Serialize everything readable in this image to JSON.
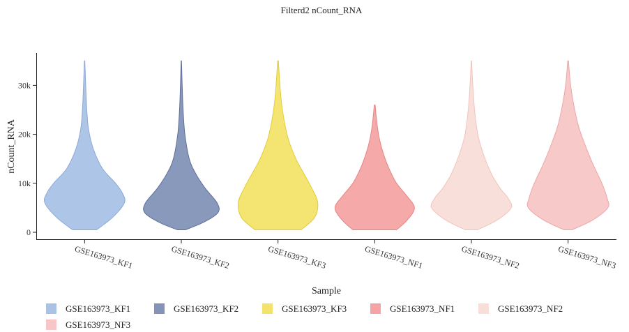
{
  "chart_data": {
    "type": "violin",
    "title": "Filterd2 nCount_RNA",
    "xlabel": "Sample",
    "ylabel": "nCount_RNA",
    "ylim": [
      -1500,
      37000
    ],
    "yticks": [
      0,
      10000,
      20000,
      30000
    ],
    "ytick_labels": [
      "0",
      "10k",
      "20k",
      "30k"
    ],
    "grid": false,
    "legend_position": "bottom",
    "categories": [
      "GSE163973_KF1",
      "GSE163973_KF2",
      "GSE163973_KF3",
      "GSE163973_NF1",
      "GSE163973_NF2",
      "GSE163973_NF3"
    ],
    "colors": [
      "#a9c2e6",
      "#8394b8",
      "#f3e36a",
      "#f4a4a4",
      "#f9ddd8",
      "#f8c6c6"
    ],
    "outline_colors": [
      "#8fa9d6",
      "#5e6f9a",
      "#e2cc3a",
      "#e58585",
      "#f0c4bd",
      "#eba7a7"
    ],
    "series": [
      {
        "name": "GSE163973_KF1",
        "profile": [
          [
            500,
            0.3
          ],
          [
            3000,
            0.7
          ],
          [
            6000,
            1.0
          ],
          [
            8000,
            0.95
          ],
          [
            10000,
            0.78
          ],
          [
            13000,
            0.45
          ],
          [
            17000,
            0.22
          ],
          [
            21000,
            0.1
          ],
          [
            25000,
            0.055
          ],
          [
            30000,
            0.028
          ],
          [
            35000,
            0.005
          ]
        ]
      },
      {
        "name": "GSE163973_KF2",
        "profile": [
          [
            500,
            0.1
          ],
          [
            2000,
            0.55
          ],
          [
            4000,
            0.92
          ],
          [
            6000,
            0.9
          ],
          [
            9000,
            0.6
          ],
          [
            12000,
            0.36
          ],
          [
            15000,
            0.2
          ],
          [
            20000,
            0.09
          ],
          [
            25000,
            0.045
          ],
          [
            30000,
            0.022
          ],
          [
            35000,
            0.004
          ]
        ]
      },
      {
        "name": "GSE163973_KF3",
        "profile": [
          [
            500,
            0.58
          ],
          [
            3000,
            0.92
          ],
          [
            6000,
            1.0
          ],
          [
            9000,
            0.85
          ],
          [
            12000,
            0.65
          ],
          [
            15000,
            0.45
          ],
          [
            19000,
            0.26
          ],
          [
            23000,
            0.15
          ],
          [
            27000,
            0.08
          ],
          [
            31000,
            0.04
          ],
          [
            35000,
            0.01
          ]
        ]
      },
      {
        "name": "GSE163973_NF1",
        "profile": [
          [
            500,
            0.55
          ],
          [
            2500,
            0.82
          ],
          [
            5000,
            1.0
          ],
          [
            7500,
            0.8
          ],
          [
            10000,
            0.55
          ],
          [
            13000,
            0.36
          ],
          [
            16000,
            0.22
          ],
          [
            19000,
            0.12
          ],
          [
            22000,
            0.06
          ],
          [
            26000,
            0.01
          ]
        ]
      },
      {
        "name": "GSE163973_NF2",
        "profile": [
          [
            500,
            0.15
          ],
          [
            2500,
            0.65
          ],
          [
            5000,
            1.0
          ],
          [
            7000,
            0.92
          ],
          [
            9000,
            0.72
          ],
          [
            12000,
            0.5
          ],
          [
            16000,
            0.3
          ],
          [
            20000,
            0.16
          ],
          [
            25000,
            0.08
          ],
          [
            30000,
            0.035
          ],
          [
            35000,
            0.005
          ]
        ]
      },
      {
        "name": "GSE163973_NF3",
        "profile": [
          [
            500,
            0.1
          ],
          [
            2500,
            0.62
          ],
          [
            5000,
            1.0
          ],
          [
            7000,
            0.98
          ],
          [
            10000,
            0.85
          ],
          [
            14000,
            0.62
          ],
          [
            18000,
            0.42
          ],
          [
            22000,
            0.25
          ],
          [
            27000,
            0.12
          ],
          [
            31000,
            0.05
          ],
          [
            35000,
            0.01
          ]
        ]
      }
    ]
  }
}
